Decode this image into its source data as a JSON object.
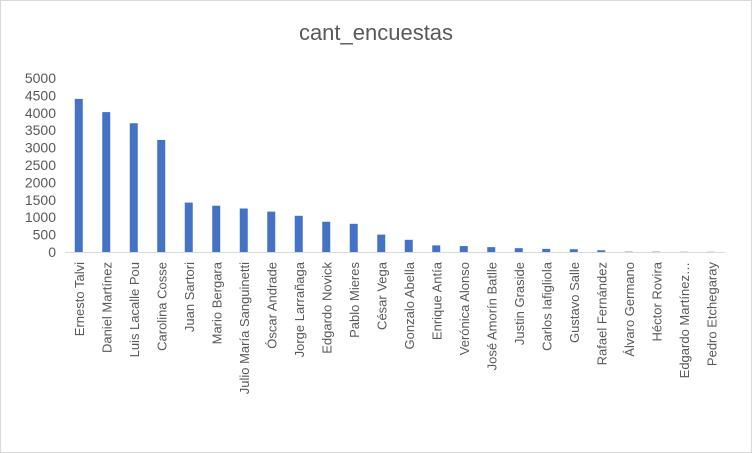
{
  "chart_data": {
    "type": "bar",
    "title": "cant_encuestas",
    "xlabel": "",
    "ylabel": "",
    "ylim": [
      0,
      5000
    ],
    "yticks": [
      0,
      500,
      1000,
      1500,
      2000,
      2500,
      3000,
      3500,
      4000,
      4500,
      5000
    ],
    "grid": false,
    "legend": "none",
    "bar_color": "#4472c4",
    "categories": [
      "Ernesto Talvi",
      "Daniel Martínez",
      "Luis Lacalle Pou",
      "Carolina Cosse",
      "Juan Sartori",
      "Mario Bergara",
      "Julio María Sanguinetti",
      "Óscar Andrade",
      "Jorge Larrañaga",
      "Edgardo Novick",
      "Pablo Mieres",
      "César Vega",
      "Gonzalo Abella",
      "Enrique Antía",
      "Verónica Alonso",
      "José Amorín Batlle",
      "Justin Graside",
      "Carlos Iafigliola",
      "Gustavo Salle",
      "Rafael Fernández",
      "Álvaro Germano",
      "Héctor Rovira",
      "Edgardo Martínez…",
      "Pedro Etchegaray"
    ],
    "values": [
      4400,
      4020,
      3700,
      3220,
      1420,
      1330,
      1250,
      1160,
      1040,
      870,
      810,
      500,
      350,
      190,
      170,
      140,
      110,
      90,
      80,
      50,
      10,
      10,
      5,
      5
    ]
  }
}
